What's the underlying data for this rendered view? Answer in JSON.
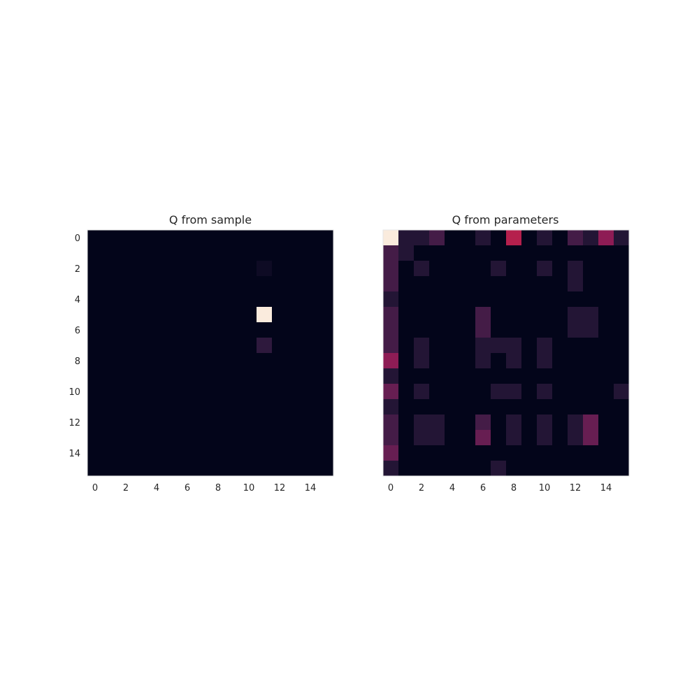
{
  "chart_data": [
    {
      "type": "heatmap",
      "title": "Q from sample",
      "xlabel": "",
      "ylabel": "",
      "x_ticks": [
        0,
        2,
        4,
        6,
        8,
        10,
        12,
        14
      ],
      "y_ticks": [
        0,
        2,
        4,
        6,
        8,
        10,
        12,
        14
      ],
      "xlim": [
        -0.5,
        15.5
      ],
      "ylim": [
        15.5,
        -0.5
      ],
      "rows": 16,
      "cols": 16,
      "colormap": "rocket",
      "grid": false,
      "show_y_ticks": true,
      "values": [
        [
          0,
          0,
          0,
          0,
          0,
          0,
          0,
          0,
          0,
          0,
          0,
          0,
          0,
          0,
          0,
          0
        ],
        [
          0,
          0,
          0,
          0,
          0,
          0,
          0,
          0,
          0,
          0,
          0,
          0,
          0,
          0,
          0,
          0
        ],
        [
          0,
          0,
          0,
          0,
          0,
          0,
          0,
          0,
          0,
          0,
          0,
          0.04,
          0,
          0,
          0,
          0
        ],
        [
          0,
          0,
          0,
          0,
          0,
          0,
          0,
          0,
          0,
          0,
          0,
          0,
          0,
          0,
          0,
          0
        ],
        [
          0,
          0,
          0,
          0,
          0,
          0,
          0,
          0,
          0,
          0,
          0,
          0,
          0,
          0,
          0,
          0
        ],
        [
          0,
          0,
          0,
          0,
          0,
          0,
          0,
          0,
          0,
          0,
          0,
          1.0,
          0,
          0,
          0,
          0
        ],
        [
          0,
          0,
          0,
          0,
          0,
          0,
          0,
          0,
          0,
          0,
          0,
          0,
          0,
          0,
          0,
          0
        ],
        [
          0,
          0,
          0,
          0,
          0,
          0,
          0,
          0,
          0,
          0,
          0,
          0.15,
          0,
          0,
          0,
          0
        ],
        [
          0,
          0,
          0,
          0,
          0,
          0,
          0,
          0,
          0,
          0,
          0,
          0,
          0,
          0,
          0,
          0
        ],
        [
          0,
          0,
          0,
          0,
          0,
          0,
          0,
          0,
          0,
          0,
          0,
          0,
          0,
          0,
          0,
          0
        ],
        [
          0,
          0,
          0,
          0,
          0,
          0,
          0,
          0,
          0,
          0,
          0,
          0,
          0,
          0,
          0,
          0
        ],
        [
          0,
          0,
          0,
          0,
          0,
          0,
          0,
          0,
          0,
          0,
          0,
          0,
          0,
          0,
          0,
          0
        ],
        [
          0,
          0,
          0,
          0,
          0,
          0,
          0,
          0,
          0,
          0,
          0,
          0,
          0,
          0,
          0,
          0
        ],
        [
          0,
          0,
          0,
          0,
          0,
          0,
          0,
          0,
          0,
          0,
          0,
          0,
          0,
          0,
          0,
          0
        ],
        [
          0,
          0,
          0,
          0,
          0,
          0,
          0,
          0,
          0,
          0,
          0,
          0,
          0,
          0,
          0,
          0
        ],
        [
          0,
          0,
          0,
          0,
          0,
          0,
          0,
          0,
          0,
          0,
          0,
          0,
          0,
          0,
          0,
          0
        ]
      ]
    },
    {
      "type": "heatmap",
      "title": "Q from parameters",
      "xlabel": "",
      "ylabel": "",
      "x_ticks": [
        0,
        2,
        4,
        6,
        8,
        10,
        12,
        14
      ],
      "y_ticks": [],
      "xlim": [
        -0.5,
        15.5
      ],
      "ylim": [
        15.5,
        -0.5
      ],
      "rows": 16,
      "cols": 16,
      "colormap": "rocket",
      "grid": false,
      "show_y_ticks": false,
      "values": [
        [
          0.1,
          0.02,
          0.02,
          0.03,
          0.01,
          0.01,
          0.02,
          0.01,
          0.06,
          0.01,
          0.02,
          0.01,
          0.03,
          0.02,
          0.05,
          0.02
        ],
        [
          0.03,
          0.02,
          0.01,
          0.01,
          0.01,
          0.01,
          0.01,
          0.01,
          0.01,
          0.01,
          0.01,
          0.01,
          0.01,
          0.01,
          0.01,
          0.01
        ],
        [
          0.03,
          0.01,
          0.02,
          0.01,
          0.01,
          0.01,
          0.01,
          0.02,
          0.01,
          0.01,
          0.02,
          0.01,
          0.02,
          0.01,
          0.01,
          0.01
        ],
        [
          0.03,
          0.01,
          0.01,
          0.01,
          0.01,
          0.01,
          0.01,
          0.01,
          0.01,
          0.01,
          0.01,
          0.01,
          0.02,
          0.01,
          0.01,
          0.01
        ],
        [
          0.02,
          0.01,
          0.01,
          0.01,
          0.01,
          0.01,
          0.01,
          0.01,
          0.01,
          0.01,
          0.01,
          0.01,
          0.01,
          0.01,
          0.01,
          0.01
        ],
        [
          0.03,
          0.01,
          0.01,
          0.01,
          0.01,
          0.01,
          0.03,
          0.01,
          0.01,
          0.01,
          0.01,
          0.01,
          0.02,
          0.02,
          0.01,
          0.01
        ],
        [
          0.03,
          0.01,
          0.01,
          0.01,
          0.01,
          0.01,
          0.03,
          0.01,
          0.01,
          0.01,
          0.01,
          0.01,
          0.02,
          0.02,
          0.01,
          0.01
        ],
        [
          0.03,
          0.01,
          0.02,
          0.01,
          0.01,
          0.01,
          0.02,
          0.02,
          0.02,
          0.01,
          0.02,
          0.01,
          0.01,
          0.01,
          0.01,
          0.01
        ],
        [
          0.05,
          0.01,
          0.02,
          0.01,
          0.01,
          0.01,
          0.02,
          0.01,
          0.02,
          0.01,
          0.02,
          0.01,
          0.01,
          0.01,
          0.01,
          0.01
        ],
        [
          0.02,
          0.01,
          0.01,
          0.01,
          0.01,
          0.01,
          0.01,
          0.01,
          0.01,
          0.01,
          0.01,
          0.01,
          0.01,
          0.01,
          0.01,
          0.01
        ],
        [
          0.04,
          0.01,
          0.02,
          0.01,
          0.01,
          0.01,
          0.01,
          0.02,
          0.02,
          0.01,
          0.02,
          0.01,
          0.01,
          0.01,
          0.01,
          0.02
        ],
        [
          0.02,
          0.01,
          0.01,
          0.01,
          0.01,
          0.01,
          0.01,
          0.01,
          0.01,
          0.01,
          0.01,
          0.01,
          0.01,
          0.01,
          0.01,
          0.01
        ],
        [
          0.03,
          0.01,
          0.02,
          0.02,
          0.01,
          0.01,
          0.03,
          0.01,
          0.02,
          0.01,
          0.02,
          0.01,
          0.02,
          0.04,
          0.01,
          0.01
        ],
        [
          0.03,
          0.01,
          0.02,
          0.02,
          0.01,
          0.01,
          0.04,
          0.01,
          0.02,
          0.01,
          0.02,
          0.01,
          0.02,
          0.04,
          0.01,
          0.01
        ],
        [
          0.04,
          0.01,
          0.01,
          0.01,
          0.01,
          0.01,
          0.01,
          0.01,
          0.01,
          0.01,
          0.01,
          0.01,
          0.01,
          0.01,
          0.01,
          0.01
        ],
        [
          0.02,
          0.01,
          0.01,
          0.01,
          0.01,
          0.01,
          0.01,
          0.02,
          0.01,
          0.01,
          0.01,
          0.01,
          0.01,
          0.01,
          0.01,
          0.01
        ]
      ]
    }
  ]
}
